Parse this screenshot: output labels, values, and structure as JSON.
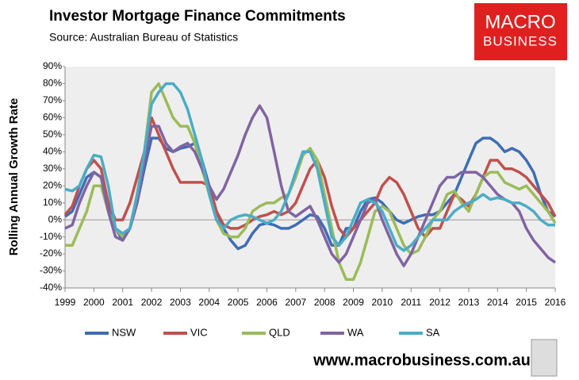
{
  "chart_data": {
    "type": "line",
    "title": "Investor Mortgage Finance Commitments",
    "subtitle": "Source: Australian Bureau of Statistics",
    "ylabel": "Rolling Annual Growth Rate",
    "logo": [
      "MACRO",
      "BUSINESS"
    ],
    "website": "www.macrobusiness.com.au",
    "legend": "bottom",
    "x": [
      1999,
      1999.25,
      1999.5,
      1999.75,
      2000,
      2000.25,
      2000.5,
      2000.75,
      2001,
      2001.25,
      2001.5,
      2001.75,
      2002,
      2002.25,
      2002.5,
      2002.75,
      2003,
      2003.25,
      2003.5,
      2003.75,
      2004,
      2004.25,
      2004.5,
      2004.75,
      2005,
      2005.25,
      2005.5,
      2005.75,
      2006,
      2006.25,
      2006.5,
      2006.75,
      2007,
      2007.25,
      2007.5,
      2007.75,
      2008,
      2008.25,
      2008.5,
      2008.75,
      2009,
      2009.25,
      2009.5,
      2009.75,
      2010,
      2010.25,
      2010.5,
      2010.75,
      2011,
      2011.25,
      2011.5,
      2011.75,
      2012,
      2012.25,
      2012.5,
      2012.75,
      2013,
      2013.25,
      2013.5,
      2013.75,
      2014,
      2014.25,
      2014.5,
      2014.75,
      2015,
      2015.25,
      2015.5,
      2015.75,
      2016
    ],
    "xlim": [
      1999,
      2016
    ],
    "xticks": [
      1999,
      2000,
      2001,
      2002,
      2003,
      2004,
      2005,
      2006,
      2007,
      2008,
      2009,
      2010,
      2011,
      2012,
      2013,
      2014,
      2015,
      2016
    ],
    "ylim": [
      -40,
      90
    ],
    "yticks": [
      {
        "value": 90,
        "label": "90%"
      },
      {
        "value": 80,
        "label": "80%"
      },
      {
        "value": 70,
        "label": "70%"
      },
      {
        "value": 60,
        "label": "60%"
      },
      {
        "value": 50,
        "label": "50%"
      },
      {
        "value": 40,
        "label": "40%"
      },
      {
        "value": 30,
        "label": "30%"
      },
      {
        "value": 20,
        "label": "20%"
      },
      {
        "value": 10,
        "label": "10%"
      },
      {
        "value": 0,
        "label": "0%"
      },
      {
        "value": -10,
        "label": "-10%"
      },
      {
        "value": -20,
        "label": "-20%"
      },
      {
        "value": -30,
        "label": "-30%"
      },
      {
        "value": -40,
        "label": "-40%"
      }
    ],
    "series": [
      {
        "name": "NSW",
        "color": "#3e6db4",
        "values": [
          2,
          5,
          15,
          25,
          28,
          25,
          10,
          -5,
          -12,
          -5,
          10,
          30,
          48,
          48,
          42,
          40,
          42,
          43,
          45,
          35,
          20,
          5,
          -5,
          -12,
          -17,
          -15,
          -8,
          -3,
          -2,
          -3,
          -5,
          -5,
          -3,
          0,
          3,
          2,
          -5,
          -15,
          -15,
          -5,
          -5,
          5,
          12,
          13,
          10,
          5,
          0,
          -2,
          0,
          2,
          3,
          3,
          5,
          10,
          15,
          25,
          35,
          45,
          48,
          48,
          45,
          40,
          42,
          40,
          35,
          28,
          15,
          5,
          2
        ]
      },
      {
        "name": "VIC",
        "color": "#c0504d",
        "values": [
          3,
          8,
          20,
          30,
          35,
          30,
          10,
          0,
          0,
          10,
          25,
          40,
          60,
          50,
          40,
          30,
          22,
          22,
          22,
          22,
          20,
          5,
          -3,
          -5,
          -5,
          -3,
          0,
          2,
          3,
          5,
          3,
          5,
          10,
          20,
          30,
          35,
          25,
          8,
          -5,
          -10,
          -5,
          0,
          5,
          10,
          20,
          25,
          22,
          15,
          5,
          -5,
          -10,
          -5,
          -5,
          5,
          15,
          12,
          8,
          15,
          25,
          35,
          35,
          30,
          30,
          28,
          25,
          20,
          15,
          10,
          2
        ]
      },
      {
        "name": "QLD",
        "color": "#9bbb59",
        "values": [
          -15,
          -15,
          -5,
          5,
          20,
          20,
          5,
          -5,
          -10,
          -5,
          15,
          40,
          75,
          80,
          70,
          60,
          55,
          55,
          45,
          30,
          15,
          0,
          -8,
          -10,
          -10,
          -5,
          5,
          8,
          10,
          10,
          13,
          15,
          25,
          38,
          42,
          35,
          15,
          -5,
          -25,
          -35,
          -35,
          -25,
          -10,
          5,
          8,
          5,
          -5,
          -15,
          -20,
          -18,
          -10,
          0,
          5,
          15,
          17,
          10,
          5,
          15,
          25,
          28,
          28,
          22,
          20,
          18,
          20,
          15,
          10,
          5,
          -2
        ]
      },
      {
        "name": "WA",
        "color": "#8064a2",
        "values": [
          -5,
          -3,
          10,
          20,
          28,
          25,
          5,
          -10,
          -12,
          -5,
          10,
          35,
          55,
          55,
          45,
          40,
          43,
          45,
          40,
          30,
          20,
          12,
          18,
          28,
          38,
          50,
          60,
          67,
          60,
          40,
          20,
          5,
          2,
          5,
          8,
          0,
          -10,
          -20,
          -25,
          -20,
          -10,
          0,
          10,
          12,
          0,
          -10,
          -20,
          -27,
          -20,
          -10,
          0,
          10,
          20,
          25,
          25,
          28,
          28,
          28,
          25,
          20,
          15,
          12,
          10,
          5,
          -5,
          -12,
          -17,
          -22,
          -25
        ]
      },
      {
        "name": "SA",
        "color": "#4bacc6",
        "values": [
          18,
          17,
          20,
          30,
          38,
          37,
          20,
          -5,
          -8,
          -5,
          15,
          40,
          68,
          75,
          80,
          80,
          75,
          65,
          50,
          35,
          15,
          0,
          -5,
          0,
          2,
          3,
          2,
          0,
          -2,
          0,
          5,
          15,
          28,
          40,
          40,
          30,
          10,
          -10,
          -15,
          -10,
          0,
          10,
          12,
          10,
          5,
          -5,
          -15,
          -18,
          -15,
          -10,
          -5,
          0,
          0,
          0,
          5,
          8,
          10,
          12,
          15,
          12,
          13,
          12,
          10,
          10,
          8,
          5,
          0,
          -3,
          -3
        ]
      }
    ]
  }
}
